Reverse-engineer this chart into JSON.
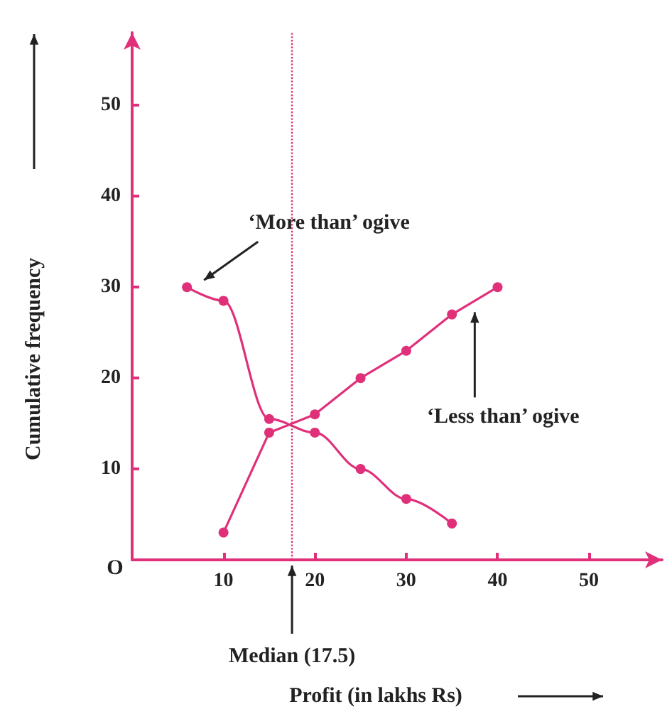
{
  "chart_data": {
    "type": "line",
    "xlabel": "Profit (in lakhs Rs)",
    "ylabel": "Cumulative frequency",
    "series": [
      {
        "x": [
          6,
          10,
          15,
          20,
          25,
          30,
          35
        ],
        "values": [
          30,
          28.5,
          15.5,
          14,
          10,
          6.7,
          4
        ],
        "color": "#e0307a"
      },
      {
        "x": [
          10,
          15,
          20,
          25,
          30,
          35,
          40
        ],
        "values": [
          3,
          14,
          16,
          20,
          23,
          27,
          30
        ],
        "color": "#e0307a"
      }
    ],
    "xlim": [
      0,
      58
    ],
    "xticks": [
      10,
      20,
      30,
      40,
      50
    ],
    "ylim": [
      0,
      58
    ],
    "yticks": [
      10,
      20,
      30,
      40,
      50
    ],
    "grid": false,
    "marker": "circle",
    "line_style": "solid",
    "ref_lines": [
      {
        "axis": "x",
        "value": 17.5,
        "label": "Median (17.5)",
        "line_style": "dotted",
        "color": "#e0307a"
      }
    ],
    "annotations": [
      "‘More than’ ogive",
      "‘Less than’ ogive",
      "O"
    ]
  }
}
